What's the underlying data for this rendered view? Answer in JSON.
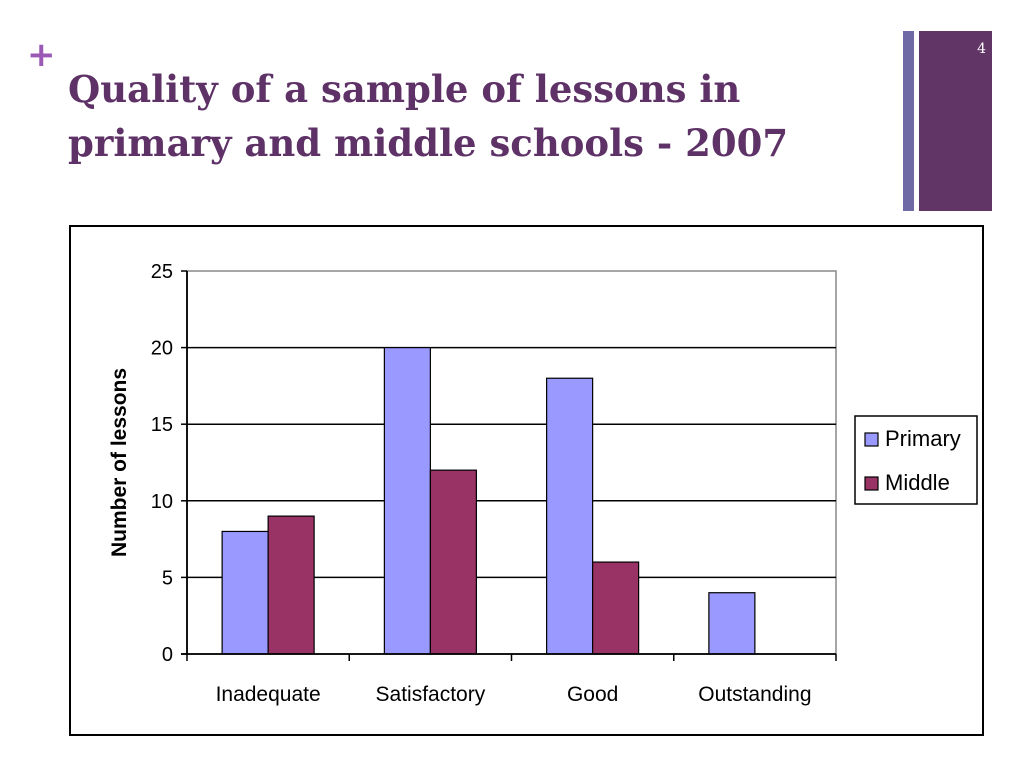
{
  "slide": {
    "plus": "+",
    "title": "Quality of a sample of lessons in primary and middle schools - 2007",
    "page_number": "4"
  },
  "colors": {
    "title": "#5e3267",
    "plus": "#9b59b6",
    "accent_thin": "#6f6aa6",
    "accent_box": "#613565",
    "primary": "#9999ff",
    "middle": "#993366"
  },
  "chart_data": {
    "type": "bar",
    "categories": [
      "Inadequate",
      "Satisfactory",
      "Good",
      "Outstanding"
    ],
    "series": [
      {
        "name": "Primary",
        "values": [
          8,
          20,
          18,
          4
        ],
        "color": "#9999ff"
      },
      {
        "name": "Middle",
        "values": [
          9,
          12,
          6,
          0
        ],
        "color": "#993366"
      }
    ],
    "title": "",
    "xlabel": "",
    "ylabel": "Number of lessons",
    "ylim": [
      0,
      25
    ],
    "yticks": [
      0,
      5,
      10,
      15,
      20,
      25
    ],
    "grid": true,
    "legend": "right"
  }
}
